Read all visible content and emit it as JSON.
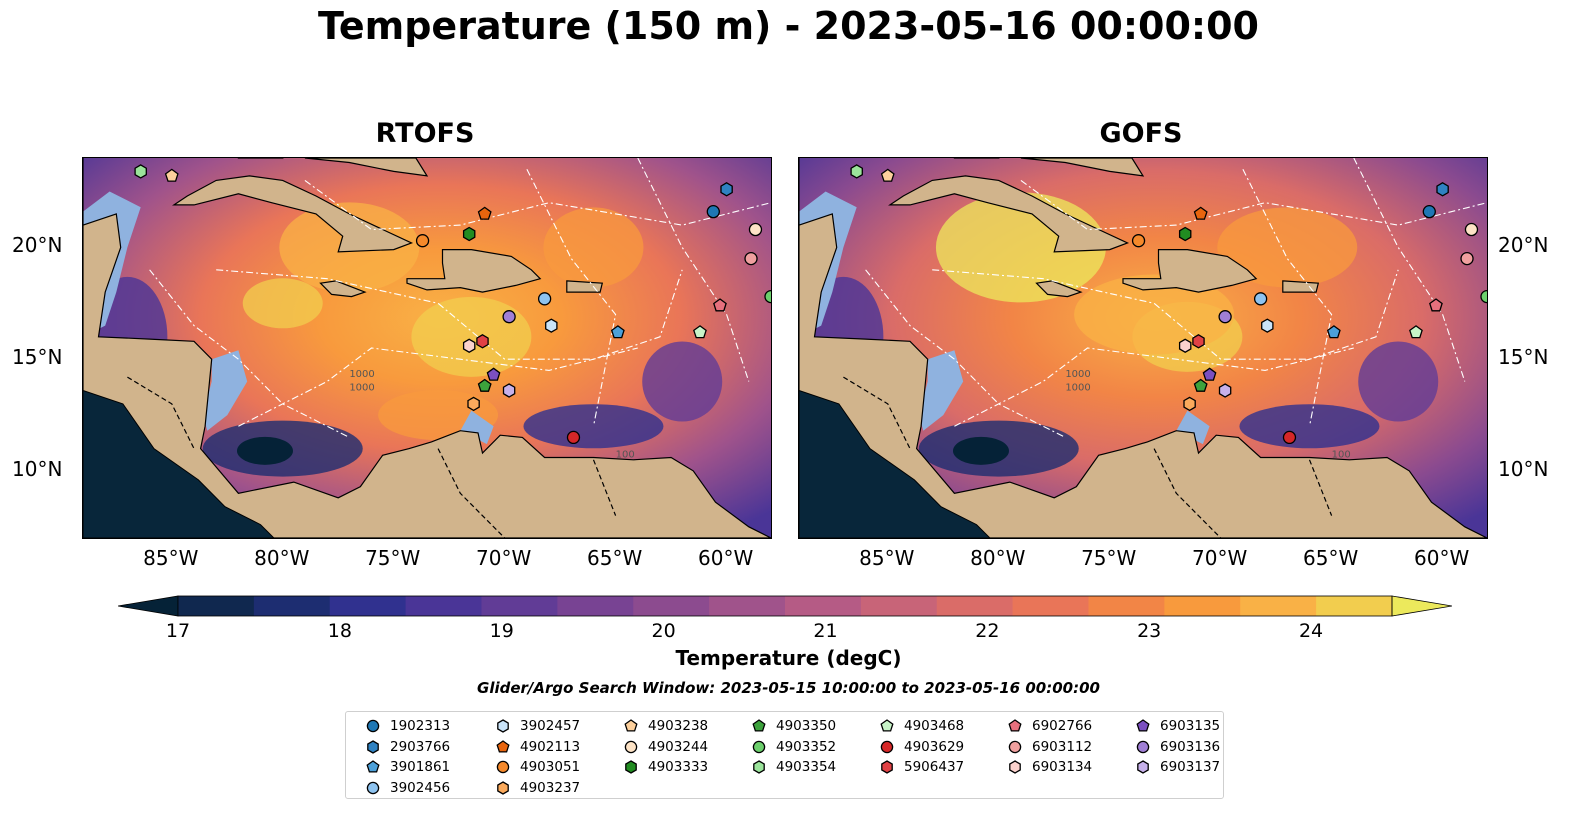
{
  "title": "Temperature (150 m) - 2023-05-16 00:00:00",
  "colors": {
    "land": "#d1b48c",
    "shelf_water": "#8fb2df",
    "deep_land_shadow": "#08263a"
  },
  "chart_data": [
    {
      "type": "heatmap",
      "title": "RTOFS",
      "x_ticks": [
        "85°W",
        "80°W",
        "75°W",
        "70°W",
        "65°W",
        "60°W"
      ],
      "x_tick_values": [
        -85,
        -80,
        -75,
        -70,
        -65,
        -60
      ],
      "y_ticks": [
        "20°N",
        "15°N",
        "10°N"
      ],
      "y_tick_values": [
        20,
        15,
        10
      ],
      "xlim": [
        -89,
        -58
      ],
      "ylim": [
        7,
        24
      ],
      "contour_labels": [
        "1000",
        "1000",
        "100"
      ]
    },
    {
      "type": "heatmap",
      "title": "GOFS",
      "x_ticks": [
        "85°W",
        "80°W",
        "75°W",
        "70°W",
        "65°W",
        "60°W"
      ],
      "x_tick_values": [
        -85,
        -80,
        -75,
        -70,
        -65,
        -60
      ],
      "y_ticks": [
        "20°N",
        "15°N",
        "10°N"
      ],
      "y_tick_values": [
        20,
        15,
        10
      ],
      "xlim": [
        -89,
        -58
      ],
      "ylim": [
        7,
        24
      ],
      "contour_labels": [
        "1000",
        "1000",
        "100"
      ]
    }
  ],
  "colorbar": {
    "label": "Temperature (degC)",
    "ticks": [
      "17",
      "18",
      "19",
      "20",
      "21",
      "22",
      "23",
      "24"
    ],
    "tick_values": [
      17,
      18,
      19,
      20,
      21,
      22,
      23,
      24
    ],
    "range": [
      17,
      24.5
    ],
    "step": 0.5,
    "colors": [
      "#052237",
      "#10284f",
      "#1d2d71",
      "#30318f",
      "#4a3597",
      "#613c96",
      "#784393",
      "#8c4b8f",
      "#a0538b",
      "#b55b85",
      "#c86478",
      "#da6c68",
      "#e97558",
      "#f28546",
      "#f89a3d",
      "#f9b146",
      "#f2cd4e",
      "#ece95c"
    ]
  },
  "search_window": "Glider/Argo Search Window: 2023-05-15 10:00:00 to 2023-05-16 00:00:00",
  "floats": [
    {
      "id": "1902313",
      "color": "#1f77b4",
      "marker": "circle",
      "lon": -60.6,
      "lat": 21.6
    },
    {
      "id": "2903766",
      "color": "#2f82c2",
      "marker": "hexagon",
      "lon": -60.0,
      "lat": 22.6
    },
    {
      "id": "3901861",
      "color": "#4ca0d9",
      "marker": "pentagon",
      "lon": -64.9,
      "lat": 16.2
    },
    {
      "id": "3902456",
      "color": "#8ec3ef",
      "marker": "circle",
      "lon": -68.2,
      "lat": 17.7
    },
    {
      "id": "3902457",
      "color": "#c9e3f8",
      "marker": "hexagon",
      "lon": -67.9,
      "lat": 16.5
    },
    {
      "id": "4902113",
      "color": "#e8650e",
      "marker": "pentagon",
      "lon": -70.9,
      "lat": 21.5
    },
    {
      "id": "4903051",
      "color": "#f5892b",
      "marker": "circle",
      "lon": -73.7,
      "lat": 20.3
    },
    {
      "id": "4903237",
      "color": "#fbaa5c",
      "marker": "hexagon",
      "lon": -71.4,
      "lat": 13.0
    },
    {
      "id": "4903238",
      "color": "#fdd09c",
      "marker": "pentagon",
      "lon": -85.0,
      "lat": 23.2
    },
    {
      "id": "4903244",
      "color": "#fde3c6",
      "marker": "circle",
      "lon": -58.7,
      "lat": 20.8
    },
    {
      "id": "4903333",
      "color": "#218c21",
      "marker": "hexagon",
      "lon": -71.6,
      "lat": 20.6
    },
    {
      "id": "4903350",
      "color": "#3ca23c",
      "marker": "pentagon",
      "lon": -70.9,
      "lat": 13.8
    },
    {
      "id": "4903352",
      "color": "#6ccf6c",
      "marker": "circle",
      "lon": -58.0,
      "lat": 17.8
    },
    {
      "id": "4903354",
      "color": "#9be49b",
      "marker": "hexagon",
      "lon": -86.4,
      "lat": 23.4
    },
    {
      "id": "4903468",
      "color": "#c8f4c8",
      "marker": "pentagon",
      "lon": -61.2,
      "lat": 16.2
    },
    {
      "id": "4903629",
      "color": "#d62728",
      "marker": "circle",
      "lon": -66.9,
      "lat": 11.5
    },
    {
      "id": "5906437",
      "color": "#e04145",
      "marker": "hexagon",
      "lon": -71.0,
      "lat": 15.8
    },
    {
      "id": "6902766",
      "color": "#e6707d",
      "marker": "pentagon",
      "lon": -60.3,
      "lat": 17.4
    },
    {
      "id": "6903112",
      "color": "#f0a09f",
      "marker": "circle",
      "lon": -58.9,
      "lat": 19.5
    },
    {
      "id": "6903134",
      "color": "#fbd2cd",
      "marker": "hexagon",
      "lon": -71.6,
      "lat": 15.6
    },
    {
      "id": "6903135",
      "color": "#7b4fc0",
      "marker": "pentagon",
      "lon": -70.5,
      "lat": 14.3
    },
    {
      "id": "6903136",
      "color": "#a07fd5",
      "marker": "circle",
      "lon": -69.8,
      "lat": 16.9
    },
    {
      "id": "6903137",
      "color": "#c7b1ea",
      "marker": "hexagon",
      "lon": -69.8,
      "lat": 13.6
    }
  ]
}
